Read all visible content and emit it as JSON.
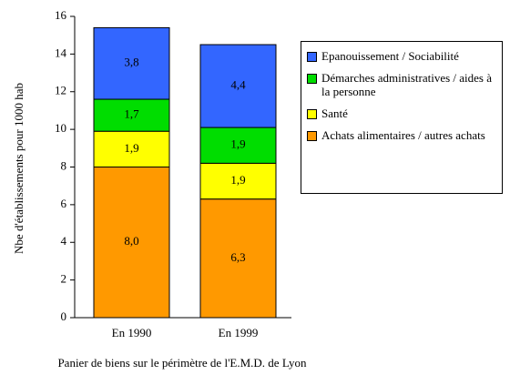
{
  "chart_data": {
    "type": "stacked_bar",
    "categories": [
      "En 1990",
      "En 1999"
    ],
    "series": [
      {
        "name": "Achats alimentaires / autres achats",
        "color": "#ff9900",
        "values": [
          8.0,
          6.3
        ],
        "value_labels": [
          "8,0",
          "6,3"
        ]
      },
      {
        "name": "Santé",
        "color": "#ffff00",
        "values": [
          1.9,
          1.9
        ],
        "value_labels": [
          "1,9",
          "1,9"
        ]
      },
      {
        "name": "Démarches administratives / aides à la personne",
        "color": "#00dd00",
        "values": [
          1.7,
          1.9
        ],
        "value_labels": [
          "1,7",
          "1,9"
        ]
      },
      {
        "name": "Epanouissement / Sociabilité",
        "color": "#3366ff",
        "values": [
          3.8,
          4.4
        ],
        "value_labels": [
          "3,8",
          "4,4"
        ]
      }
    ],
    "y_label": "Nbe d'établissements pour 1000 hab",
    "x_label": "Panier de biens sur le périmètre de l'E.M.D. de Lyon",
    "ylim": [
      0,
      16
    ],
    "yticks": [
      0,
      2,
      4,
      6,
      8,
      10,
      12,
      14,
      16
    ]
  }
}
